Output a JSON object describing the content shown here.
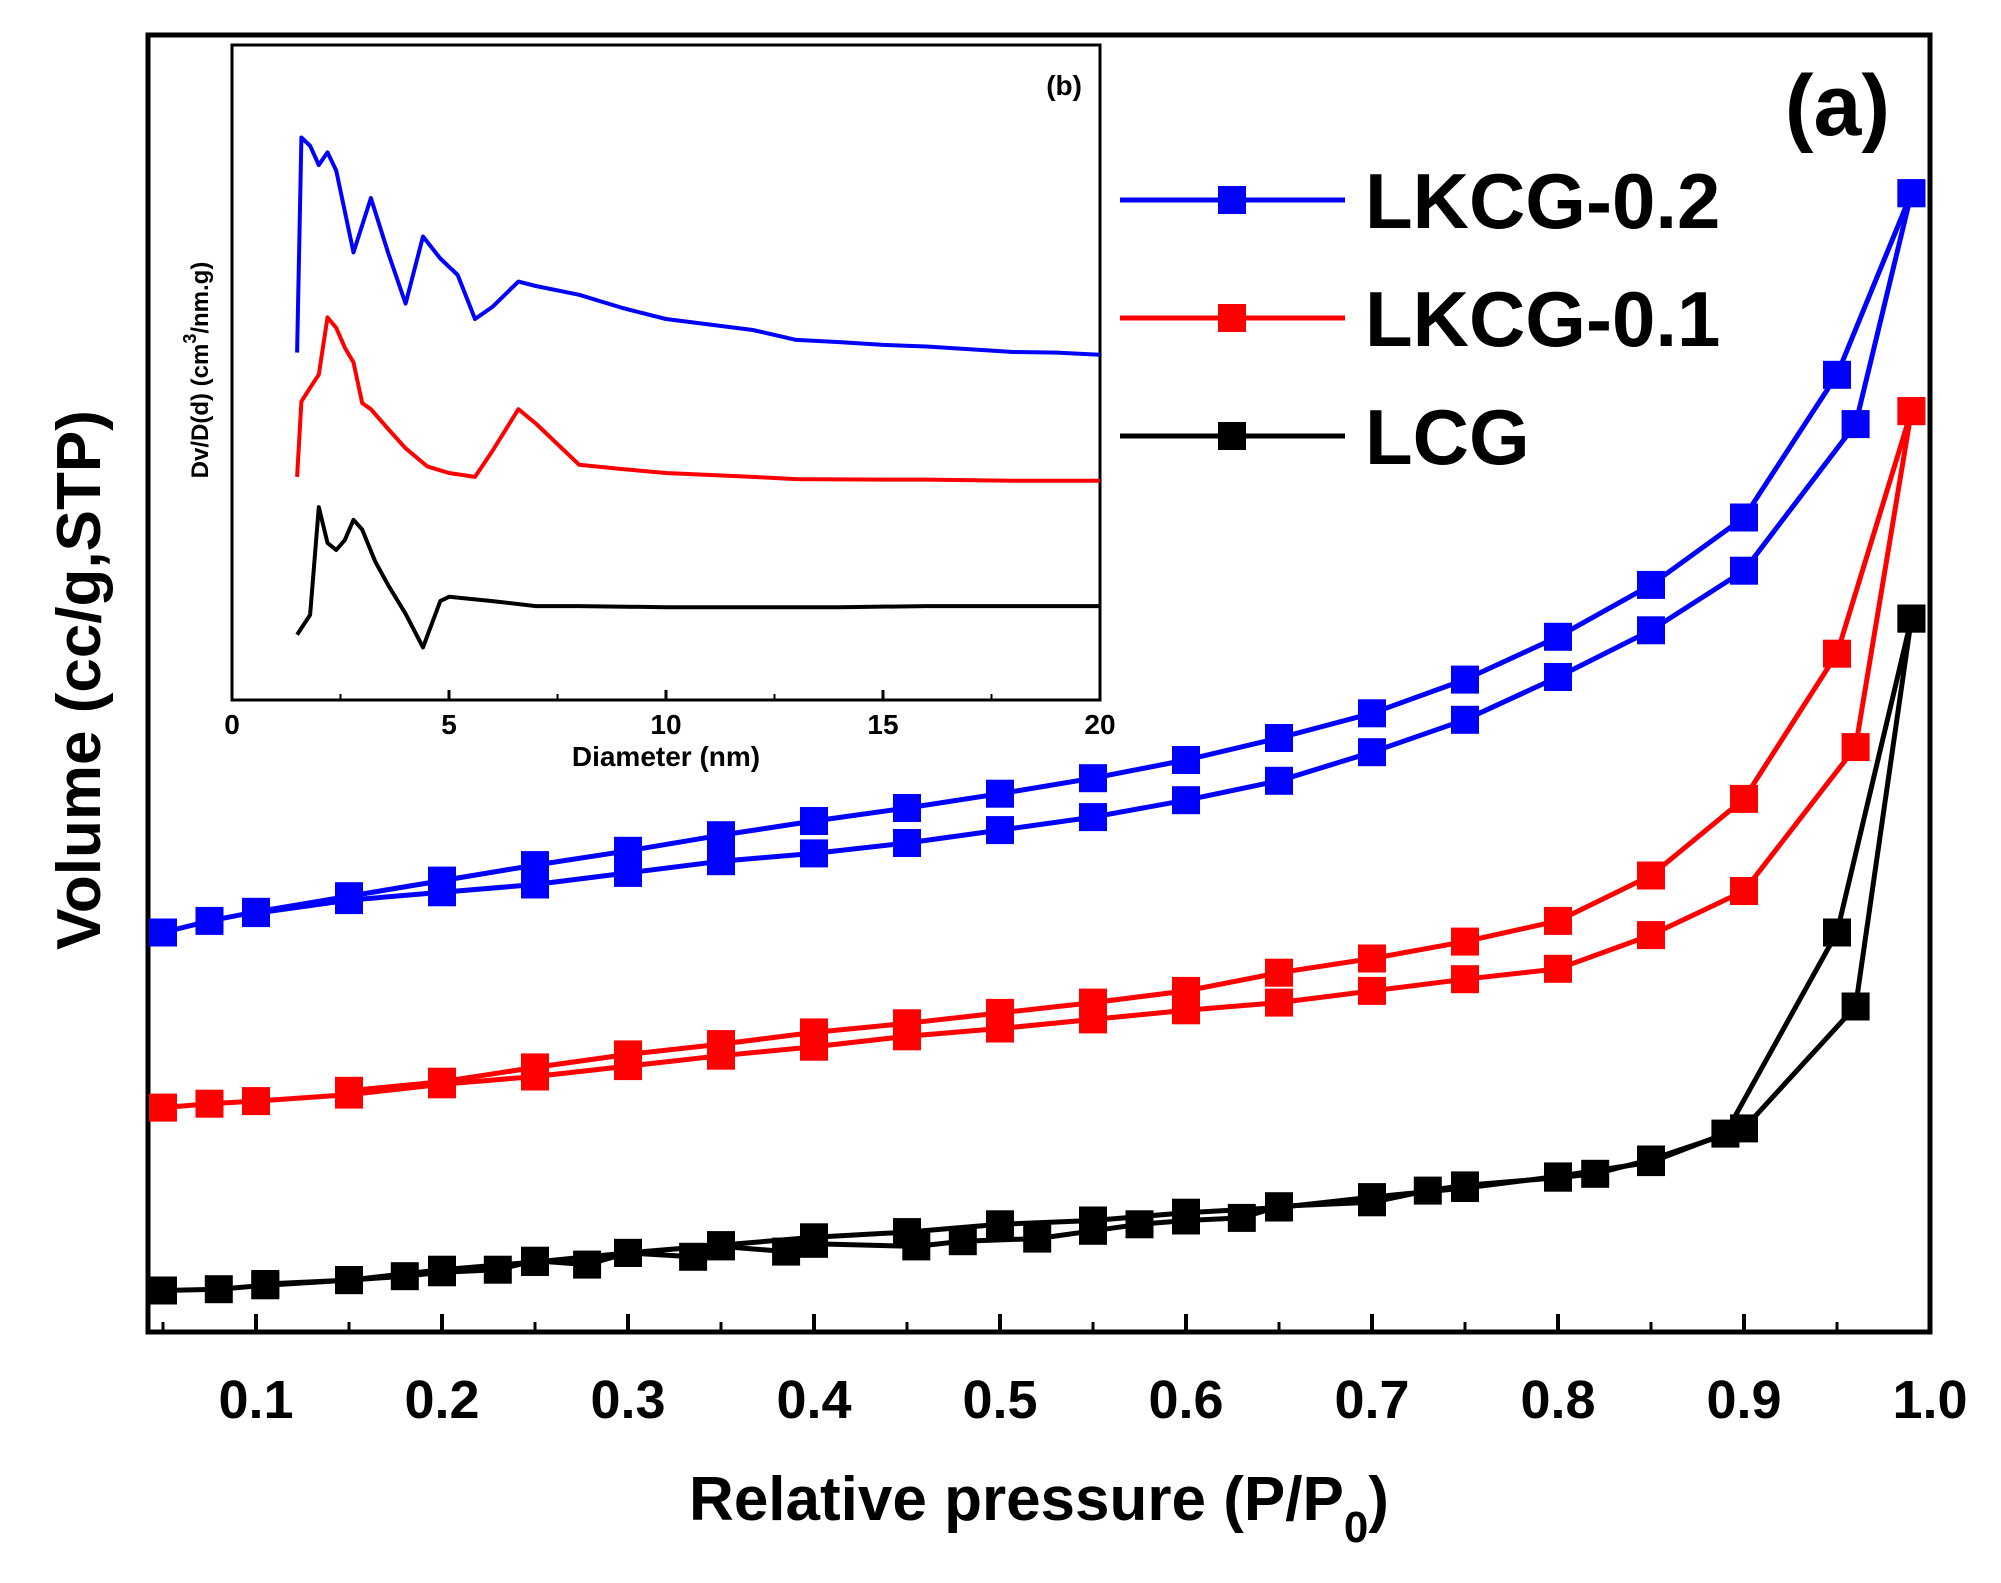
{
  "chart_data": [
    {
      "panel": "main",
      "type": "line",
      "panel_label": "(a)",
      "xlabel": "Relative pressure (P/P",
      "xlabel_sub": "0",
      "xlabel_end": ")",
      "ylabel": "Volume (cc/g,STP)",
      "xlim": [
        0.0,
        1.0
      ],
      "ylim": [
        0,
        100
      ],
      "xticks": [
        0.1,
        0.2,
        0.3,
        0.4,
        0.5,
        0.6,
        0.7,
        0.8,
        0.9,
        1.0
      ],
      "xtick_labels": [
        "0.1",
        "0.2",
        "0.3",
        "0.4",
        "0.5",
        "0.6",
        "0.7",
        "0.8",
        "0.9",
        "1.0"
      ],
      "legend_position": "top-right",
      "series": [
        {
          "name": "LKCG-0.2",
          "color": "#0000ff",
          "branches": [
            {
              "x": [
                0.05,
                0.075,
                0.1,
                0.15,
                0.2,
                0.25,
                0.3,
                0.35,
                0.4,
                0.45,
                0.5,
                0.55,
                0.6,
                0.65,
                0.7,
                0.75,
                0.8,
                0.85,
                0.9,
                0.95,
                0.99
              ],
              "y": [
                30.8,
                31.7,
                32.4,
                33.6,
                34.8,
                36.0,
                37.1,
                38.3,
                39.4,
                40.4,
                41.5,
                42.7,
                44.1,
                45.8,
                47.7,
                50.3,
                53.6,
                57.6,
                62.8,
                73.8,
                87.8
              ]
            },
            {
              "x": [
                0.99,
                0.96,
                0.9,
                0.85,
                0.8,
                0.75,
                0.7,
                0.65,
                0.6,
                0.55,
                0.5,
                0.45,
                0.4,
                0.35,
                0.3,
                0.25,
                0.2,
                0.15,
                0.1
              ],
              "y": [
                87.8,
                70.0,
                58.7,
                54.1,
                50.5,
                47.2,
                44.7,
                42.5,
                41.0,
                39.7,
                38.7,
                37.7,
                36.9,
                36.3,
                35.4,
                34.5,
                33.9,
                33.3,
                32.3
              ]
            }
          ]
        },
        {
          "name": "LKCG-0.1",
          "color": "#ff0000",
          "branches": [
            {
              "x": [
                0.05,
                0.075,
                0.1,
                0.15,
                0.2,
                0.25,
                0.3,
                0.35,
                0.4,
                0.45,
                0.5,
                0.55,
                0.6,
                0.65,
                0.7,
                0.75,
                0.8,
                0.85,
                0.9,
                0.96,
                0.99
              ],
              "y": [
                17.3,
                17.6,
                17.8,
                18.3,
                19.1,
                19.7,
                20.5,
                21.3,
                22.0,
                22.8,
                23.4,
                24.1,
                24.8,
                25.4,
                26.3,
                27.2,
                28.0,
                30.6,
                34.0,
                45.1,
                71.0
              ]
            },
            {
              "x": [
                0.99,
                0.95,
                0.9,
                0.85,
                0.8,
                0.75,
                0.7,
                0.65,
                0.6,
                0.55,
                0.5,
                0.45,
                0.4,
                0.35,
                0.3,
                0.25,
                0.2,
                0.15
              ],
              "y": [
                71.0,
                52.3,
                41.1,
                35.2,
                31.7,
                30.1,
                28.8,
                27.7,
                26.3,
                25.4,
                24.6,
                23.8,
                23.1,
                22.2,
                21.4,
                20.4,
                19.3,
                18.6
              ]
            }
          ]
        },
        {
          "name": "LCG",
          "color": "#000000",
          "branches": [
            {
              "x": [
                0.05,
                0.08,
                0.105,
                0.15,
                0.2,
                0.25,
                0.3,
                0.35,
                0.4,
                0.45,
                0.5,
                0.55,
                0.6,
                0.65,
                0.7,
                0.75,
                0.8,
                0.85,
                0.89,
                0.95,
                0.99
              ],
              "y": [
                3.2,
                3.3,
                3.6,
                4.0,
                4.8,
                5.4,
                6.1,
                6.7,
                7.3,
                7.7,
                8.3,
                8.6,
                9.2,
                9.6,
                10.4,
                11.1,
                12.0,
                13.1,
                15.3,
                30.8,
                55.0
              ]
            },
            {
              "x": [
                0.99,
                0.96,
                0.9,
                0.85,
                0.82,
                0.8,
                0.75,
                0.73,
                0.7,
                0.65,
                0.63,
                0.6,
                0.575,
                0.55,
                0.52,
                0.48,
                0.455,
                0.4,
                0.385,
                0.35,
                0.335,
                0.3,
                0.278,
                0.25,
                0.23,
                0.2,
                0.18,
                0.15,
                0.105
              ],
              "y": [
                55.0,
                25.1,
                15.7,
                13.3,
                12.2,
                11.9,
                11.3,
                10.9,
                10.0,
                9.7,
                8.8,
                8.6,
                8.3,
                7.8,
                7.2,
                7.0,
                6.6,
                6.8,
                6.2,
                6.6,
                5.8,
                6.1,
                5.2,
                5.5,
                4.8,
                4.6,
                4.3,
                4.0,
                3.7
              ]
            }
          ]
        }
      ]
    },
    {
      "panel": "inset",
      "type": "line",
      "panel_label": "(b)",
      "xlabel": "Diameter (nm)",
      "ylabel": "Dv/D(d) (cm",
      "ylabel_sup": "3",
      "ylabel_end": "/nm.g)",
      "xlim": [
        0,
        20
      ],
      "ylim": [
        0,
        100
      ],
      "xticks": [
        0,
        5,
        10,
        15,
        20
      ],
      "xtick_labels": [
        "0",
        "5",
        "10",
        "15",
        "20"
      ],
      "series": [
        {
          "color": "#0000ff",
          "x": [
            1.5,
            1.6,
            1.8,
            2.0,
            2.2,
            2.4,
            2.8,
            3.2,
            3.6,
            4.0,
            4.4,
            4.8,
            5.2,
            5.6,
            6.0,
            6.6,
            7.0,
            8.0,
            9.0,
            10.0,
            11.0,
            12.0,
            13.0,
            14.0,
            15.0,
            16.0,
            17.0,
            18.0,
            19.0,
            20.0
          ],
          "y": [
            55.9,
            95.0,
            93.5,
            90.0,
            92.3,
            89.0,
            74.1,
            84.0,
            74.0,
            64.8,
            77.0,
            73.0,
            70.0,
            62.0,
            64.2,
            68.8,
            68.0,
            66.4,
            64.0,
            62.0,
            61.0,
            60.0,
            58.2,
            57.8,
            57.3,
            57.0,
            56.5,
            56.0,
            55.9,
            55.5
          ]
        },
        {
          "color": "#ff0000",
          "x": [
            1.5,
            1.6,
            1.8,
            2.0,
            2.2,
            2.4,
            2.6,
            2.8,
            3.0,
            3.2,
            3.6,
            4.0,
            4.5,
            5.0,
            5.6,
            6.0,
            6.6,
            7.0,
            8.0,
            9.0,
            10.0,
            12.0,
            13.0,
            15.0,
            16.0,
            18.0,
            20.0
          ],
          "y": [
            33.3,
            47.0,
            49.5,
            51.9,
            62.3,
            60.4,
            56.8,
            54.1,
            46.7,
            45.6,
            42.0,
            38.5,
            35.2,
            34.0,
            33.3,
            38.0,
            45.6,
            43.0,
            35.5,
            34.7,
            34.0,
            33.3,
            32.9,
            32.8,
            32.8,
            32.6,
            32.6
          ]
        },
        {
          "color": "#000000",
          "x": [
            1.5,
            1.8,
            2.0,
            2.2,
            2.4,
            2.6,
            2.8,
            3.0,
            3.3,
            3.6,
            4.0,
            4.4,
            4.8,
            5.0,
            6.0,
            7.0,
            8.0,
            10.0,
            12.0,
            14.0,
            16.0,
            18.0,
            20.0
          ],
          "y": [
            4.6,
            8.2,
            27.8,
            21.3,
            20.0,
            21.8,
            25.5,
            23.7,
            17.9,
            13.6,
            8.4,
            2.3,
            10.7,
            11.5,
            10.7,
            9.8,
            9.8,
            9.6,
            9.6,
            9.6,
            9.8,
            9.8,
            9.8
          ]
        }
      ]
    }
  ]
}
